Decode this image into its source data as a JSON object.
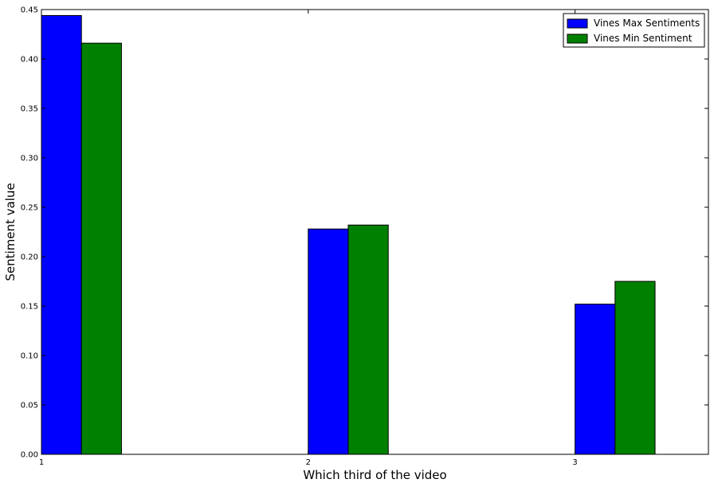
{
  "chart_data": {
    "type": "bar",
    "title": "",
    "xlabel": "Which third of the video",
    "ylabel": "Sentiment value",
    "categories": [
      "1",
      "2",
      "3"
    ],
    "x_positions": [
      1,
      2,
      3
    ],
    "xlim": [
      1,
      3.5
    ],
    "ylim": [
      0,
      0.45
    ],
    "yticks": [
      "0.00",
      "0.05",
      "0.10",
      "0.15",
      "0.20",
      "0.25",
      "0.30",
      "0.35",
      "0.40",
      "0.45"
    ],
    "bar_width": 0.15,
    "series": [
      {
        "name": "Vines Max Sentiments",
        "color": "#0000ff",
        "values": [
          0.444,
          0.228,
          0.152
        ]
      },
      {
        "name": "Vines Min Sentiment",
        "color": "#008000",
        "values": [
          0.416,
          0.232,
          0.175
        ]
      }
    ],
    "legend_position": "top-right",
    "grid": false
  }
}
